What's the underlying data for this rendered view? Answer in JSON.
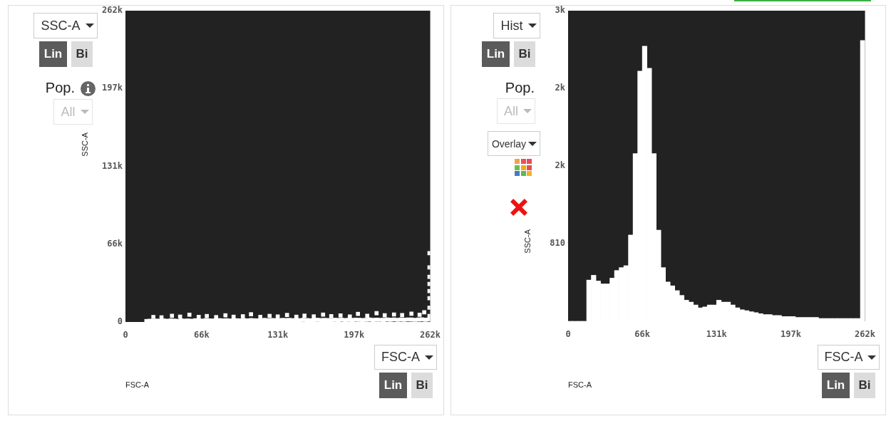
{
  "chart_data": [
    {
      "type": "scatter",
      "xlabel": "FSC-A",
      "ylabel": "SSC-A",
      "annotations": [
        "SSC-A",
        "Lin",
        "Bi",
        "Pop.",
        "All",
        "FSC-A",
        "Lin",
        "Bi"
      ],
      "xlim": [
        0,
        262144
      ],
      "xticks": [
        0,
        {
          "value": 65536,
          "label": "66k"
        },
        {
          "value": 131072,
          "label": "131k"
        },
        {
          "value": 196608,
          "label": "197k"
        },
        {
          "value": 262144,
          "label": "262k"
        }
      ],
      "ylim": [
        0,
        262144
      ],
      "yticks": [
        0,
        {
          "value": 65536,
          "label": "66k"
        },
        {
          "value": 131072,
          "label": "131k"
        },
        {
          "value": 196608,
          "label": "197k"
        },
        {
          "value": 262144,
          "label": "262k"
        }
      ],
      "marker": "square",
      "color": "#ffffff",
      "x": [
        18000,
        21000,
        24000,
        27000,
        30000,
        33000,
        36000,
        39000,
        42000,
        45000,
        48000,
        51000,
        54000,
        57000,
        60000,
        63000,
        66000,
        69000,
        72000,
        75000,
        78000,
        81000,
        84000,
        87000,
        90000,
        93000,
        96000,
        99000,
        102000,
        105000,
        108000,
        111000,
        114000,
        117000,
        120000,
        123000,
        126000,
        129000,
        132000,
        135000,
        138000,
        141000,
        144000,
        147000,
        150000,
        153000,
        156000,
        159000,
        162000,
        165000,
        168000,
        171000,
        174000,
        177000,
        180000,
        183000,
        186000,
        189000,
        192000,
        195000,
        198000,
        201000,
        204000,
        207000,
        210000,
        213000,
        216000,
        219000,
        222000,
        225000,
        228000,
        231000,
        234000,
        237000,
        240000,
        243000,
        246000,
        249000,
        252000,
        255000,
        258000,
        261000,
        24000,
        31000,
        40000,
        47000,
        55000,
        63000,
        70000,
        78000,
        86000,
        93000,
        101000,
        108000,
        116000,
        124000,
        131000,
        139000,
        147000,
        154000,
        162000,
        170000,
        177000,
        185000,
        193000,
        200000,
        208000,
        216000,
        223000,
        231000,
        238000,
        246000,
        253000,
        257000,
        261500,
        261500,
        261500,
        261500,
        261500,
        261500,
        261500,
        261500
      ],
      "values": [
        800,
        1000,
        700,
        1100,
        900,
        1200,
        1000,
        1300,
        1100,
        900,
        1300,
        1100,
        1200,
        1000,
        1400,
        1200,
        1100,
        1500,
        1300,
        1200,
        1400,
        1500,
        1300,
        1400,
        1200,
        1600,
        1400,
        1300,
        1500,
        1300,
        1600,
        1400,
        1300,
        1500,
        1700,
        1400,
        1600,
        1500,
        1300,
        1700,
        1600,
        1700,
        1500,
        1600,
        1500,
        1800,
        1600,
        1400,
        1700,
        1800,
        1600,
        1700,
        1600,
        1500,
        1800,
        1700,
        1900,
        1600,
        1800,
        1700,
        1900,
        1800,
        1600,
        1800,
        2000,
        1700,
        1900,
        1800,
        1700,
        2000,
        1900,
        2100,
        1800,
        2000,
        1900,
        2100,
        2000,
        1800,
        2000,
        2200,
        1900,
        2100,
        4200,
        3900,
        5200,
        4500,
        6100,
        4300,
        5000,
        4100,
        5600,
        4400,
        4800,
        6500,
        4300,
        5100,
        4600,
        5900,
        4400,
        5300,
        4700,
        6200,
        4900,
        5500,
        4600,
        6800,
        5200,
        7400,
        5600,
        6300,
        5800,
        7000,
        6100,
        8200,
        5000,
        12000,
        20000,
        26000,
        32000,
        38000,
        46000,
        58000
      ]
    },
    {
      "type": "histogram",
      "xlabel": "FSC-A",
      "ylabel": "SSC-A",
      "annotations": [
        "Hist",
        "Lin",
        "Bi",
        "Pop.",
        "All",
        "Overlay",
        "FSC-A",
        "Lin",
        "Bi"
      ],
      "xlim": [
        0,
        262144
      ],
      "xticks": [
        0,
        {
          "value": 65536,
          "label": "66k"
        },
        {
          "value": 131072,
          "label": "131k"
        },
        {
          "value": 196608,
          "label": "197k"
        },
        {
          "value": 262144,
          "label": "262k"
        }
      ],
      "ylim": [
        0,
        3240
      ],
      "yticks": [
        810,
        {
          "value": 1620,
          "label": "2k"
        },
        {
          "value": 2430,
          "label": "2k"
        },
        {
          "value": 3240,
          "label": "3k"
        }
      ],
      "color": "#ffffff",
      "bins": [
        0,
        4096,
        8192,
        12288,
        16384,
        20480,
        24576,
        28672,
        32768,
        36864,
        40960,
        45056,
        49152,
        53248,
        57344,
        61440,
        65536,
        69632,
        73728,
        77824,
        81920,
        86016,
        90112,
        94208,
        98304,
        102400,
        106496,
        110592,
        114688,
        118784,
        122880,
        126976,
        131072,
        135168,
        139264,
        143360,
        147456,
        151552,
        155648,
        159744,
        163840,
        167936,
        172032,
        176128,
        180224,
        184320,
        188416,
        192512,
        196608,
        200704,
        204800,
        208896,
        212992,
        217088,
        221184,
        225280,
        229376,
        233472,
        237568,
        241664,
        245760,
        249856,
        253952,
        258048,
        262144
      ],
      "values": [
        0,
        0,
        0,
        0,
        430,
        480,
        420,
        390,
        390,
        450,
        530,
        560,
        580,
        900,
        1750,
        2610,
        2870,
        2640,
        1750,
        950,
        560,
        410,
        370,
        320,
        270,
        220,
        200,
        170,
        140,
        150,
        170,
        170,
        220,
        200,
        200,
        170,
        140,
        120,
        110,
        100,
        90,
        80,
        70,
        70,
        60,
        60,
        50,
        50,
        50,
        40,
        40,
        40,
        40,
        40,
        30,
        30,
        30,
        30,
        30,
        30,
        30,
        30,
        30,
        2930
      ]
    }
  ]
}
